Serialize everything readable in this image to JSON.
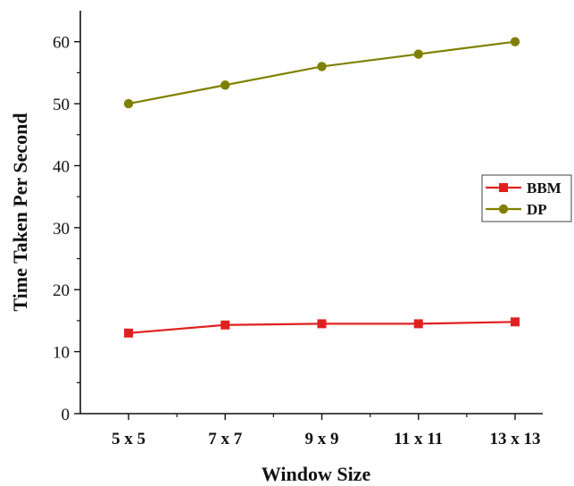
{
  "chart_data": {
    "type": "line",
    "categories": [
      "5 x 5",
      "7 x 7",
      "9 x 9",
      "11 x 11",
      "13 x 13"
    ],
    "series": [
      {
        "name": "BBM",
        "values": [
          13,
          14.3,
          14.5,
          14.5,
          14.8
        ],
        "color": "#e02020",
        "marker": "square"
      },
      {
        "name": "DP",
        "values": [
          50,
          53,
          56,
          58,
          60
        ],
        "color": "#808000",
        "marker": "circle"
      }
    ],
    "xlabel": "Window Size",
    "ylabel": "Time Taken Per Second",
    "ylim": [
      0,
      65
    ],
    "yticks": [
      0,
      10,
      20,
      30,
      40,
      50,
      60
    ],
    "grid": false,
    "legend_position": "right"
  }
}
